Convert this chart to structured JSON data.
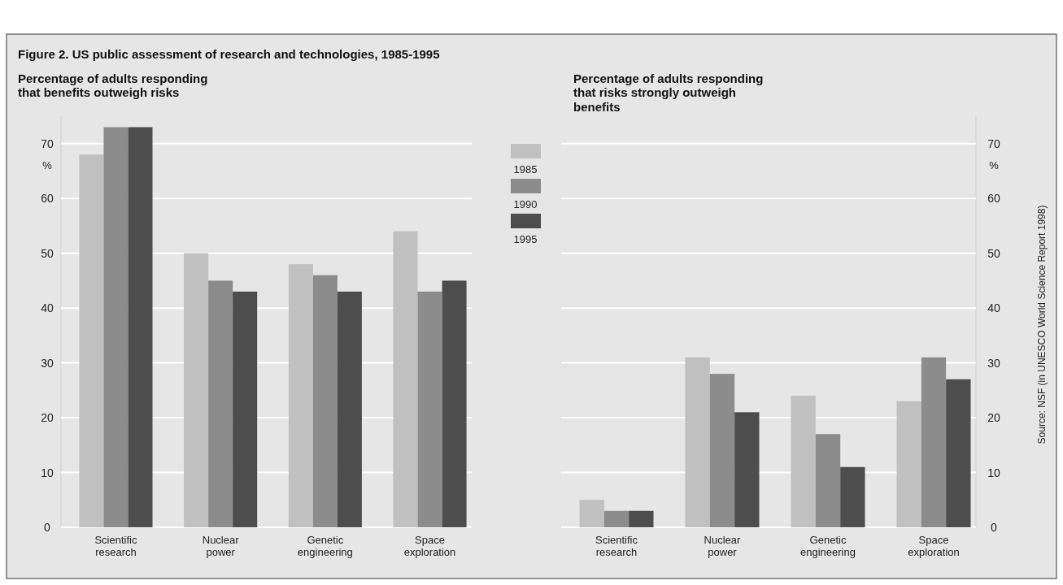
{
  "chart_data": [
    {
      "type": "bar",
      "title": "Figure 2. US public assessment of research and technologies, 1985-1995",
      "subtitle": "Percentage of adults responding that benefits outweigh risks",
      "ylabel": "%",
      "categories": [
        "Scientific research",
        "Nuclear power",
        "Genetic engineering",
        "Space exploration"
      ],
      "series": [
        {
          "name": "1985",
          "color": "#c0c0c0",
          "values": [
            68,
            50,
            48,
            54
          ]
        },
        {
          "name": "1990",
          "color": "#8c8c8c",
          "values": [
            73,
            45,
            46,
            43
          ]
        },
        {
          "name": "1995",
          "color": "#4d4d4d",
          "values": [
            73,
            43,
            43,
            45
          ]
        }
      ],
      "ylim": [
        0,
        75
      ],
      "yticks": [
        0,
        10,
        20,
        30,
        40,
        50,
        60,
        70
      ],
      "grid": "y",
      "legend": "right"
    },
    {
      "type": "bar",
      "subtitle": "Percentage of adults responding that risks strongly outweigh benefits",
      "ylabel": "%",
      "categories": [
        "Scientific research",
        "Nuclear power",
        "Genetic engineering",
        "Space exploration"
      ],
      "series": [
        {
          "color": "#c0c0c0",
          "values": [
            5,
            31,
            24,
            23
          ]
        },
        {
          "color": "#8c8c8c",
          "values": [
            3,
            28,
            17,
            31
          ]
        },
        {
          "color": "#4d4d4d",
          "values": [
            3,
            21,
            11,
            27
          ]
        }
      ],
      "ylim": [
        0,
        75
      ],
      "yticks": [
        0,
        10,
        20,
        30,
        40,
        50,
        60,
        70
      ],
      "grid": "y",
      "annotations": [
        "Source: NSF (in UNESCO World Science Report 1998)"
      ]
    }
  ]
}
